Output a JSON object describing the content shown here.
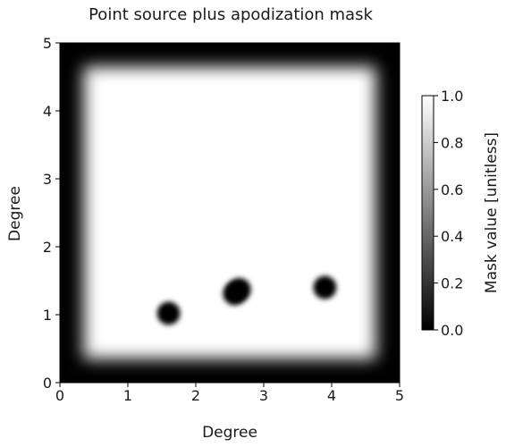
{
  "chart_data": {
    "type": "heatmap",
    "title": "Point source plus apodization mask",
    "xlabel": "Degree",
    "ylabel": "Degree",
    "xlim": [
      0,
      5
    ],
    "ylim": [
      0,
      5
    ],
    "x_ticks": [
      "0",
      "1",
      "2",
      "3",
      "4",
      "5"
    ],
    "y_ticks": [
      "0",
      "1",
      "2",
      "3",
      "4",
      "5"
    ],
    "colormap": "gray",
    "colormap_colors": [
      "#000000",
      "#ffffff"
    ],
    "colorbar": {
      "label": "Mask value [unitless]",
      "range": [
        0.0,
        1.0
      ],
      "ticks": [
        "0.0",
        "0.2",
        "0.4",
        "0.6",
        "0.8",
        "1.0"
      ]
    },
    "apodization": {
      "inner_edge_x": [
        0.35,
        4.65
      ],
      "inner_edge_y": [
        0.35,
        4.65
      ],
      "mask_edge_value": 0.0,
      "mask_interior_value": 1.0
    },
    "point_sources": [
      {
        "x": 1.6,
        "y": 1.02,
        "radius": 0.17,
        "value": 0.0
      },
      {
        "x": 2.57,
        "y": 1.31,
        "radius": 0.17,
        "value": 0.0
      },
      {
        "x": 2.64,
        "y": 1.37,
        "radius": 0.17,
        "value": 0.0
      },
      {
        "x": 3.9,
        "y": 1.4,
        "radius": 0.17,
        "value": 0.0
      }
    ],
    "grid": false
  }
}
